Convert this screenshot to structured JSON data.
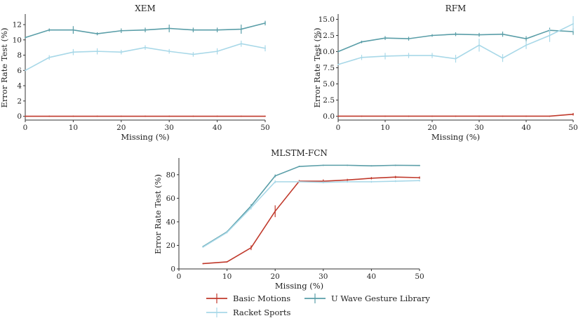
{
  "colors": {
    "Basic Motions": "#c0392b",
    "U Wave Gesture Library": "#5a9ea8",
    "Racket Sports": "#a8d8e8",
    "axis": "#333333"
  },
  "legend": {
    "items": [
      "Basic Motions",
      "U Wave Gesture Library",
      "Racket Sports"
    ]
  },
  "chart_data": [
    {
      "type": "line",
      "title": "XEM",
      "xlabel": "Missing (%)",
      "ylabel": "Error Rate Test (%)",
      "xlim": [
        0,
        50
      ],
      "ylim": [
        -0.5,
        13.2
      ],
      "xticks": [
        0,
        10,
        20,
        30,
        40,
        50
      ],
      "yticks": [
        0,
        2,
        4,
        6,
        8,
        10,
        12
      ],
      "x": [
        0,
        5,
        10,
        15,
        20,
        25,
        30,
        35,
        40,
        45,
        50
      ],
      "series": [
        {
          "name": "Basic Motions",
          "values": [
            0,
            0,
            0,
            0,
            0,
            0,
            0,
            0,
            0,
            0,
            0
          ],
          "err": [
            0,
            0,
            0,
            0,
            0,
            0,
            0,
            0,
            0,
            0,
            0
          ]
        },
        {
          "name": "U Wave Gesture Library",
          "values": [
            10.3,
            11.3,
            11.3,
            10.8,
            11.2,
            11.3,
            11.5,
            11.3,
            11.3,
            11.4,
            12.2
          ],
          "err": [
            0,
            0.2,
            0.5,
            0.2,
            0.3,
            0.3,
            0.5,
            0.3,
            0.3,
            0.6,
            0.3
          ]
        },
        {
          "name": "Racket Sports",
          "values": [
            6.0,
            7.7,
            8.4,
            8.5,
            8.4,
            9.0,
            8.5,
            8.1,
            8.5,
            9.5,
            8.9
          ],
          "err": [
            0,
            0.3,
            0.4,
            0.4,
            0.3,
            0.3,
            0.3,
            0.3,
            0.4,
            0.4,
            0.4
          ]
        }
      ]
    },
    {
      "type": "line",
      "title": "RFM",
      "xlabel": "Missing (%)",
      "ylabel": "Error Rate Test (%)",
      "xlim": [
        0,
        50
      ],
      "ylim": [
        -0.6,
        15.6
      ],
      "xticks": [
        0,
        10,
        20,
        30,
        40,
        50
      ],
      "yticks": [
        0.0,
        2.5,
        5.0,
        7.5,
        10.0,
        12.5,
        15.0
      ],
      "ytick_labels": [
        "0.0",
        "2.5",
        "5.0",
        "7.5",
        "10.0",
        "12.5",
        "15.0"
      ],
      "x": [
        0,
        5,
        10,
        15,
        20,
        25,
        30,
        35,
        40,
        45,
        50
      ],
      "series": [
        {
          "name": "Basic Motions",
          "values": [
            0,
            0,
            0,
            0,
            0,
            0,
            0,
            0,
            0,
            0,
            0.3
          ],
          "err": [
            0,
            0,
            0,
            0,
            0,
            0,
            0,
            0,
            0,
            0,
            0.2
          ]
        },
        {
          "name": "U Wave Gesture Library",
          "values": [
            10.0,
            11.5,
            12.1,
            12.0,
            12.5,
            12.7,
            12.6,
            12.7,
            12.0,
            13.3,
            13.1
          ],
          "err": [
            0,
            0.2,
            0.3,
            0.3,
            0.2,
            0.3,
            0.3,
            0.4,
            0.4,
            0.4,
            0.5
          ]
        },
        {
          "name": "Racket Sports",
          "values": [
            8.0,
            9.1,
            9.3,
            9.4,
            9.4,
            8.9,
            11.0,
            9.0,
            11.0,
            12.5,
            14.3
          ],
          "err": [
            0,
            0.4,
            0.5,
            0.4,
            0.4,
            0.6,
            1.0,
            0.6,
            0.6,
            1.0,
            1.2
          ]
        }
      ]
    },
    {
      "type": "line",
      "title": "MLSTM-FCN",
      "xlabel": "Missing (%)",
      "ylabel": "Error Rate Test (%)",
      "xlim": [
        0,
        50
      ],
      "ylim": [
        0,
        93
      ],
      "xticks": [
        0,
        10,
        20,
        30,
        40,
        50
      ],
      "yticks": [
        0,
        20,
        40,
        60,
        80
      ],
      "x": [
        5,
        10,
        15,
        20,
        25,
        30,
        35,
        40,
        45,
        50
      ],
      "series": [
        {
          "name": "Basic Motions",
          "values": [
            4.5,
            6,
            18,
            49,
            74.5,
            74.5,
            75.5,
            77,
            78,
            77.5
          ],
          "err": [
            0,
            0,
            2,
            5,
            1,
            1.5,
            1,
            1,
            1,
            1
          ]
        },
        {
          "name": "U Wave Gesture Library",
          "values": [
            19,
            31.5,
            53.5,
            79,
            87,
            88,
            88,
            87.5,
            88,
            87.8
          ],
          "err": [
            0,
            0.8,
            1.5,
            1.2,
            0.5,
            0.5,
            0.5,
            0.5,
            0.5,
            0.5
          ]
        },
        {
          "name": "Racket Sports",
          "values": [
            18.5,
            31,
            52,
            74,
            74,
            73.5,
            74,
            74,
            74.5,
            75
          ],
          "err": [
            0,
            0.8,
            1.5,
            1.2,
            0.8,
            0.8,
            0.8,
            0.8,
            0.8,
            0.8
          ]
        }
      ]
    }
  ]
}
